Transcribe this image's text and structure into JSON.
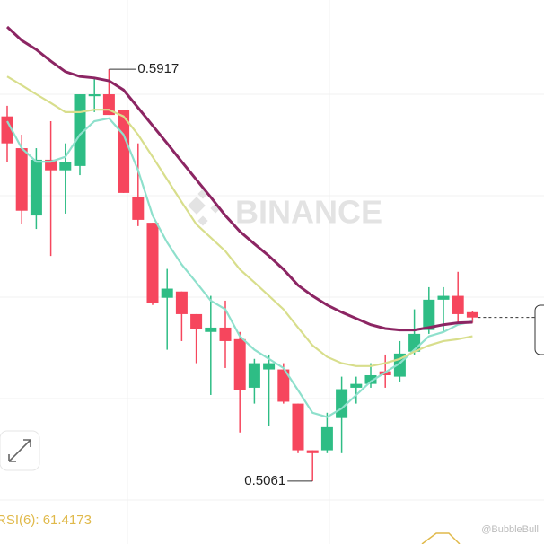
{
  "chart_data": {
    "type": "candlestick",
    "watermark": "BINANCE",
    "credit": "@BubbleBull",
    "indicator_label": "RSI(6):",
    "indicator_value": 61.4173,
    "ylim": [
      0.5016,
      0.6061
    ],
    "up_color": "#2ebd85",
    "down_color": "#f6465d",
    "categories": [
      null,
      null,
      null,
      null,
      null,
      null,
      null,
      null,
      null,
      null,
      null,
      null,
      null,
      null,
      null,
      null,
      null,
      null,
      null,
      null,
      null,
      null,
      null,
      null,
      null,
      null,
      null,
      null,
      null,
      null,
      null,
      null,
      null
    ],
    "open": [
      0.5819,
      0.5753,
      0.5613,
      0.5729,
      0.5707,
      0.5716,
      0.5861,
      0.5865,
      0.5833,
      0.5651,
      0.5598,
      0.5442,
      0.5455,
      0.5408,
      0.5371,
      0.538,
      0.5356,
      0.5255,
      0.5293,
      0.5293,
      0.5222,
      0.5125,
      0.5125,
      0.5192,
      0.5255,
      0.5263,
      0.5289,
      0.5278,
      0.533,
      0.5375,
      0.5438,
      0.5446,
      0.5412
    ],
    "high": [
      0.5841,
      0.5781,
      0.5753,
      0.5809,
      0.5763,
      0.5865,
      0.5897,
      0.5917,
      0.5833,
      0.5763,
      0.5598,
      0.5502,
      0.5455,
      0.5408,
      0.5446,
      0.5436,
      0.5371,
      0.5315,
      0.5324,
      0.5306,
      0.5222,
      0.5125,
      0.5203,
      0.5278,
      0.5278,
      0.5306,
      0.5324,
      0.5352,
      0.5418,
      0.5464,
      0.5464,
      0.5496,
      0.5414
    ],
    "low": [
      0.5725,
      0.5595,
      0.5585,
      0.5529,
      0.5617,
      0.5697,
      0.5828,
      0.5822,
      0.566,
      0.5591,
      0.5427,
      0.5334,
      0.5352,
      0.5306,
      0.524,
      0.5296,
      0.5162,
      0.5222,
      0.5175,
      0.5222,
      0.5119,
      0.5061,
      0.5119,
      0.5119,
      0.5222,
      0.5255,
      0.5255,
      0.5268,
      0.5324,
      0.5367,
      0.5371,
      0.539,
      0.539
    ],
    "close": [
      0.5763,
      0.5623,
      0.5729,
      0.5707,
      0.5725,
      0.5865,
      0.5865,
      0.5822,
      0.566,
      0.5604,
      0.5431,
      0.5461,
      0.5408,
      0.5378,
      0.538,
      0.5352,
      0.525,
      0.5306,
      0.5306,
      0.5226,
      0.5125,
      0.5119,
      0.5173,
      0.5252,
      0.5263,
      0.5281,
      0.5281,
      0.5326,
      0.5367,
      0.5438,
      0.5446,
      0.5408,
      0.5401
    ],
    "series": [
      {
        "color": "#8ee0cc",
        "values": [
          0.5809,
          0.5753,
          0.5725,
          0.5725,
          0.5735,
          0.5781,
          0.5809,
          0.5815,
          0.5781,
          0.5707,
          0.5613,
          0.5557,
          0.5511,
          0.5474,
          0.5436,
          0.5418,
          0.5362,
          0.5334,
          0.5315,
          0.5296,
          0.525,
          0.5203,
          0.5194,
          0.5212,
          0.524,
          0.5268,
          0.5287,
          0.5306,
          0.5334,
          0.5362,
          0.5371,
          0.5386,
          0.5393
        ]
      },
      {
        "color": "#d8de8c",
        "values": [
          0.5902,
          0.5884,
          0.5865,
          0.5847,
          0.5828,
          0.5828,
          0.5833,
          0.5833,
          0.5819,
          0.5781,
          0.5735,
          0.5688,
          0.5641,
          0.5595,
          0.5567,
          0.5539,
          0.5501,
          0.5474,
          0.5446,
          0.5418,
          0.538,
          0.5343,
          0.5319,
          0.5306,
          0.53,
          0.53,
          0.5306,
          0.5315,
          0.533,
          0.5343,
          0.5352,
          0.5356,
          0.5362
        ]
      },
      {
        "color": "#8c2563",
        "values": [
          0.6005,
          0.5977,
          0.5958,
          0.5934,
          0.5912,
          0.5902,
          0.5899,
          0.5893,
          0.5874,
          0.5837,
          0.58,
          0.5763,
          0.5725,
          0.5688,
          0.5651,
          0.5613,
          0.558,
          0.5554,
          0.5529,
          0.5501,
          0.5468,
          0.5446,
          0.5427,
          0.5412,
          0.5399,
          0.5386,
          0.5378,
          0.5375,
          0.5375,
          0.538,
          0.5386,
          0.539,
          0.5391
        ]
      }
    ]
  }
}
